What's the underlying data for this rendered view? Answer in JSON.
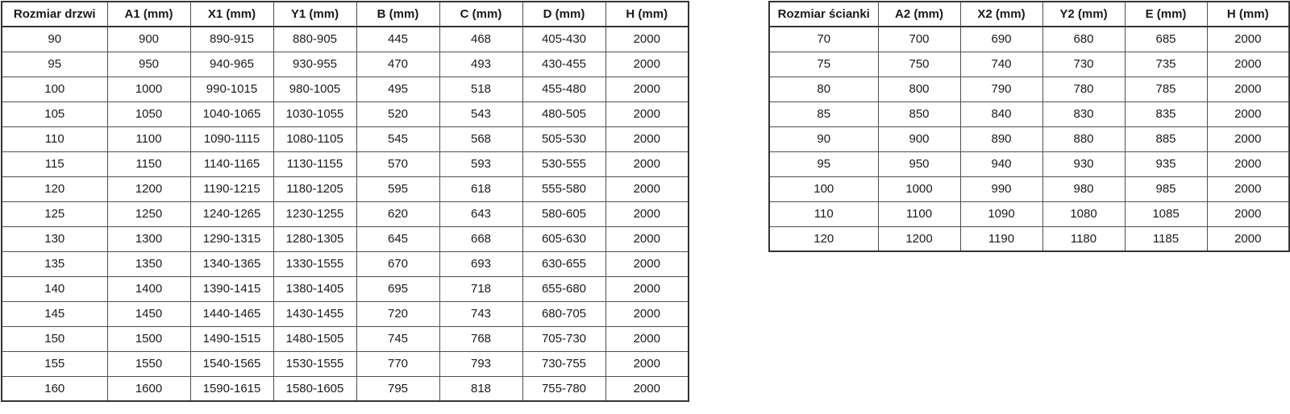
{
  "colors": {
    "background": "#ffffff",
    "text": "#1a1a1a",
    "inner_border": "#4f4f4f",
    "outer_border": "#343434"
  },
  "doors_table": {
    "headers": [
      "Rozmiar drzwi",
      "A1 (mm)",
      "X1 (mm)",
      "Y1 (mm)",
      "B (mm)",
      "C (mm)",
      "D (mm)",
      "H (mm)"
    ],
    "rows": [
      [
        "90",
        "900",
        "890-915",
        "880-905",
        "445",
        "468",
        "405-430",
        "2000"
      ],
      [
        "95",
        "950",
        "940-965",
        "930-955",
        "470",
        "493",
        "430-455",
        "2000"
      ],
      [
        "100",
        "1000",
        "990-1015",
        "980-1005",
        "495",
        "518",
        "455-480",
        "2000"
      ],
      [
        "105",
        "1050",
        "1040-1065",
        "1030-1055",
        "520",
        "543",
        "480-505",
        "2000"
      ],
      [
        "110",
        "1100",
        "1090-1115",
        "1080-1105",
        "545",
        "568",
        "505-530",
        "2000"
      ],
      [
        "115",
        "1150",
        "1140-1165",
        "1130-1155",
        "570",
        "593",
        "530-555",
        "2000"
      ],
      [
        "120",
        "1200",
        "1190-1215",
        "1180-1205",
        "595",
        "618",
        "555-580",
        "2000"
      ],
      [
        "125",
        "1250",
        "1240-1265",
        "1230-1255",
        "620",
        "643",
        "580-605",
        "2000"
      ],
      [
        "130",
        "1300",
        "1290-1315",
        "1280-1305",
        "645",
        "668",
        "605-630",
        "2000"
      ],
      [
        "135",
        "1350",
        "1340-1365",
        "1330-1555",
        "670",
        "693",
        "630-655",
        "2000"
      ],
      [
        "140",
        "1400",
        "1390-1415",
        "1380-1405",
        "695",
        "718",
        "655-680",
        "2000"
      ],
      [
        "145",
        "1450",
        "1440-1465",
        "1430-1455",
        "720",
        "743",
        "680-705",
        "2000"
      ],
      [
        "150",
        "1500",
        "1490-1515",
        "1480-1505",
        "745",
        "768",
        "705-730",
        "2000"
      ],
      [
        "155",
        "1550",
        "1540-1565",
        "1530-1555",
        "770",
        "793",
        "730-755",
        "2000"
      ],
      [
        "160",
        "1600",
        "1590-1615",
        "1580-1605",
        "795",
        "818",
        "755-780",
        "2000"
      ]
    ]
  },
  "walls_table": {
    "headers": [
      "Rozmiar ścianki",
      "A2 (mm)",
      "X2 (mm)",
      "Y2 (mm)",
      "E (mm)",
      "H (mm)"
    ],
    "rows": [
      [
        "70",
        "700",
        "690",
        "680",
        "685",
        "2000"
      ],
      [
        "75",
        "750",
        "740",
        "730",
        "735",
        "2000"
      ],
      [
        "80",
        "800",
        "790",
        "780",
        "785",
        "2000"
      ],
      [
        "85",
        "850",
        "840",
        "830",
        "835",
        "2000"
      ],
      [
        "90",
        "900",
        "890",
        "880",
        "885",
        "2000"
      ],
      [
        "95",
        "950",
        "940",
        "930",
        "935",
        "2000"
      ],
      [
        "100",
        "1000",
        "990",
        "980",
        "985",
        "2000"
      ],
      [
        "110",
        "1100",
        "1090",
        "1080",
        "1085",
        "2000"
      ],
      [
        "120",
        "1200",
        "1190",
        "1180",
        "1185",
        "2000"
      ]
    ]
  }
}
